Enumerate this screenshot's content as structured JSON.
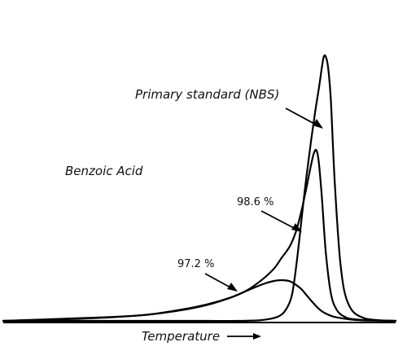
{
  "chart_data": {
    "type": "line",
    "xlabel": "Temperature",
    "ylabel": "",
    "annotations": {
      "sample": "Benzoic Acid",
      "primary": "Primary standard (NBS)",
      "p986": "98.6 %",
      "p972": "97.2 %"
    },
    "xlim": [
      0,
      100
    ],
    "ylim": [
      0,
      100
    ],
    "grid": false,
    "series": [
      {
        "x": [
          0,
          30,
          50,
          60,
          66,
          70,
          72,
          73.5,
          74.5,
          75.5,
          76.5,
          77.5,
          78.5,
          79.5,
          80.5,
          81.2,
          81.7,
          82.2,
          82.8,
          83.5,
          84.5,
          86,
          88,
          92,
          100
        ],
        "y": [
          0,
          0,
          0,
          0,
          0.3,
          1.5,
          4,
          9,
          18,
          30,
          43,
          55,
          66,
          76,
          85,
          92,
          96,
          96,
          92,
          80,
          50,
          20,
          6,
          1,
          0
        ]
      },
      {
        "x": [
          0,
          20,
          35,
          45,
          52,
          58,
          62,
          66,
          69,
          71,
          73,
          74.5,
          75.5,
          76.5,
          77.5,
          78.5,
          79.2,
          79.8,
          80.4,
          81.2,
          82.2,
          83.5,
          85,
          87,
          90,
          100
        ],
        "y": [
          0,
          1,
          2,
          4,
          6,
          8.5,
          11,
          15,
          19,
          23,
          27,
          32,
          37,
          43,
          50,
          57,
          61,
          62,
          58,
          45,
          25,
          10,
          4,
          1.5,
          0.5,
          0
        ]
      },
      {
        "x": [
          0,
          20,
          35,
          45,
          52,
          58,
          63,
          66.5,
          69,
          71,
          73,
          74.5,
          76,
          77.5,
          79,
          80.5,
          82,
          84,
          86,
          88,
          90,
          93,
          100
        ],
        "y": [
          0,
          0.8,
          2,
          3.8,
          5.8,
          8.5,
          11.5,
          13.5,
          14.5,
          14.8,
          14.4,
          13.2,
          11.5,
          9,
          6.5,
          4.3,
          2.8,
          1.6,
          1,
          0.6,
          0.3,
          0.1,
          0
        ]
      }
    ]
  }
}
